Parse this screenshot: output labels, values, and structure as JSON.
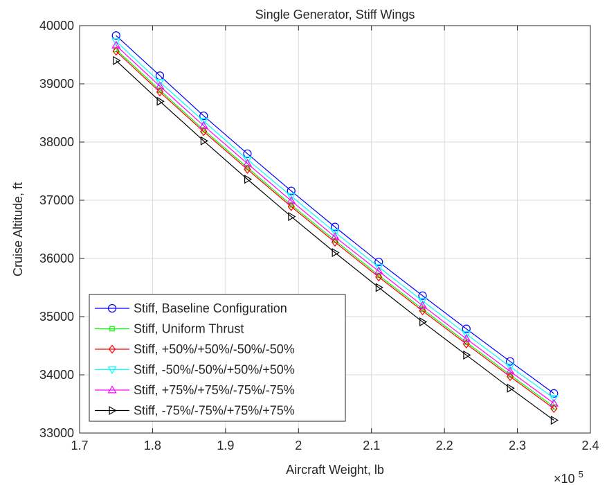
{
  "chart_data": {
    "type": "line",
    "title": "Single Generator, Stiff Wings",
    "xlabel": "Aircraft Weight, lb",
    "ylabel": "Cruise Altitude, ft",
    "x_multiplier_label": "×10",
    "x_multiplier_exp": "5",
    "xlim": [
      1.7,
      2.4
    ],
    "ylim": [
      33000,
      40000
    ],
    "xticks": [
      "1.7",
      "1.8",
      "1.9",
      "2",
      "2.1",
      "2.2",
      "2.3",
      "2.4"
    ],
    "yticks": [
      "33000",
      "34000",
      "35000",
      "36000",
      "37000",
      "38000",
      "39000",
      "40000"
    ],
    "grid": true,
    "legend_position": "bottom-left",
    "x": [
      1.75,
      1.81,
      1.87,
      1.93,
      1.99,
      2.05,
      2.11,
      2.17,
      2.23,
      2.29,
      2.35
    ],
    "series": [
      {
        "name": "Stiff, Baseline Configuration",
        "color": "#0000ff",
        "marker": "circle",
        "values": [
          39830,
          39140,
          38450,
          37800,
          37160,
          36540,
          35940,
          35360,
          34790,
          34230,
          33680
        ]
      },
      {
        "name": "Stiff, Uniform Thrust",
        "color": "#00ff00",
        "marker": "square",
        "values": [
          39590,
          38890,
          38210,
          37560,
          36920,
          36310,
          35710,
          35130,
          34560,
          34000,
          33450
        ]
      },
      {
        "name": "Stiff, +50%/+50%/-50%/-50%",
        "color": "#ff0000",
        "marker": "diamond",
        "values": [
          39560,
          38860,
          38180,
          37530,
          36890,
          36280,
          35680,
          35100,
          34530,
          33970,
          33420
        ]
      },
      {
        "name": "Stiff, -50%/-50%/+50%/+50%",
        "color": "#00ffff",
        "marker": "triangle-down",
        "values": [
          39730,
          39030,
          38360,
          37700,
          37070,
          36450,
          35850,
          35270,
          34700,
          34140,
          33600
        ]
      },
      {
        "name": "Stiff, +75%/+75%/-75%/-75%",
        "color": "#ff00ff",
        "marker": "triangle-up",
        "values": [
          39660,
          38960,
          38280,
          37630,
          36990,
          36370,
          35780,
          35190,
          34620,
          34060,
          33510
        ]
      },
      {
        "name": "Stiff, -75%/-75%/+75%/+75%",
        "color": "#000000",
        "marker": "triangle-right",
        "values": [
          39400,
          38700,
          38020,
          37360,
          36720,
          36100,
          35500,
          34910,
          34340,
          33770,
          33220
        ]
      }
    ]
  }
}
